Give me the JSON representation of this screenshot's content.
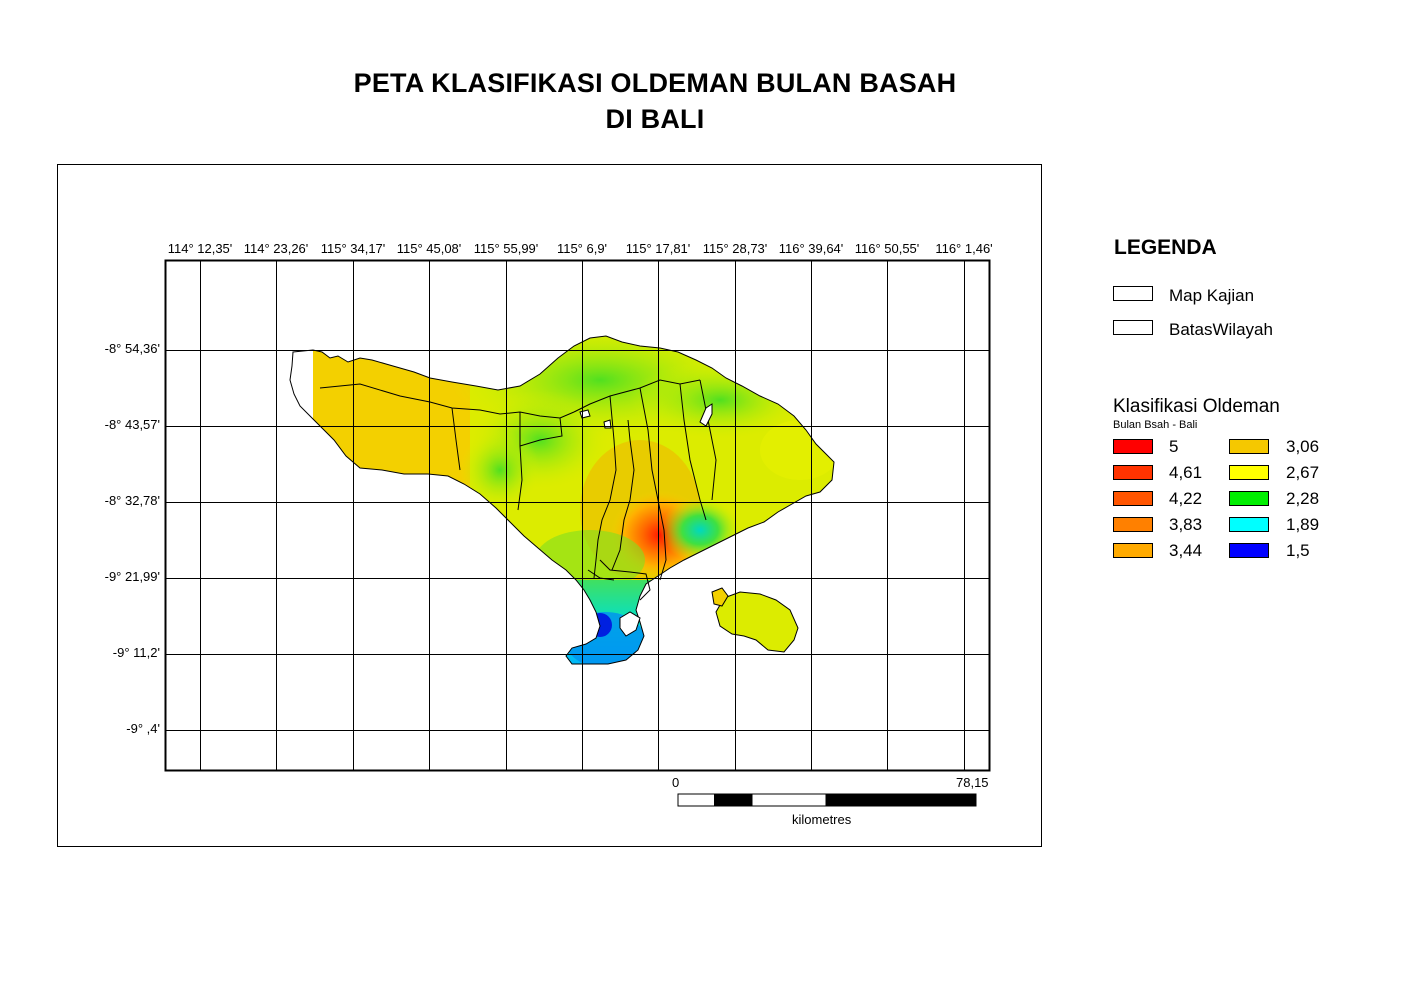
{
  "title": {
    "line1": "PETA KLASIFIKASI OLDEMAN BULAN BASAH",
    "line2": "DI BALI"
  },
  "map": {
    "longitude_labels": [
      "114° 12,35'",
      "114° 23,26'",
      "115° 34,17'",
      "115° 45,08'",
      "115° 55,99'",
      "115° 6,9'",
      "115° 17,81'",
      "115° 28,73'",
      "116° 39,64'",
      "116° 50,55'",
      "116° 1,46'"
    ],
    "latitude_labels": [
      "-8° 54,36'",
      "-8° 43,57'",
      "-8° 32,78'",
      "-9° 21,99'",
      "-9° 11,2'",
      "-9° ,4'"
    ],
    "scale_bar": {
      "start_label": "0",
      "end_label": "78,15",
      "unit": "kilometres"
    }
  },
  "legend": {
    "title": "LEGENDA",
    "layers": [
      {
        "name": "Map Kajian"
      },
      {
        "name": "BatasWilayah"
      }
    ],
    "classification": {
      "title": "Klasifikasi Oldeman",
      "subtitle": "Bulan Bsah - Bali",
      "classes": [
        {
          "value": "5",
          "color": "#ff0000"
        },
        {
          "value": "4,61",
          "color": "#ff3300"
        },
        {
          "value": "4,22",
          "color": "#ff5500"
        },
        {
          "value": "3,83",
          "color": "#ff8000"
        },
        {
          "value": "3,44",
          "color": "#ffaa00"
        },
        {
          "value": "3,06",
          "color": "#f5c800"
        },
        {
          "value": "2,67",
          "color": "#ffff00"
        },
        {
          "value": "2,28",
          "color": "#00ee00"
        },
        {
          "value": "1,89",
          "color": "#00ffff"
        },
        {
          "value": "1,5",
          "color": "#0000ff"
        }
      ]
    }
  }
}
